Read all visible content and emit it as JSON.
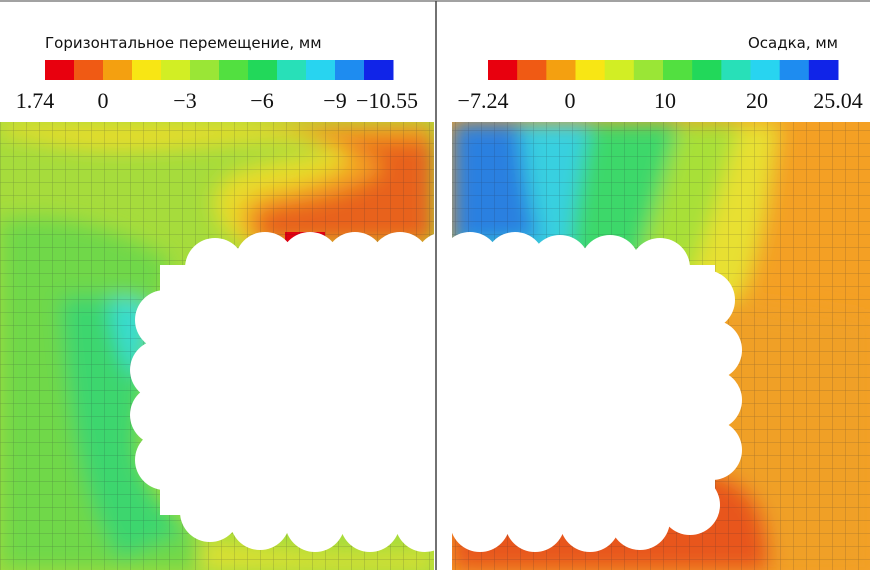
{
  "panels": [
    {
      "title": "Горизонтальное перемещение, мм",
      "colorbar": {
        "colors": [
          "#e8000e",
          "#f05a14",
          "#f4a010",
          "#f8e614",
          "#d2ee24",
          "#9ae636",
          "#52e040",
          "#22d85a",
          "#28e0b8",
          "#28d4f0",
          "#1e8cf0",
          "#1024e8"
        ],
        "labels": [
          "1.74",
          "0",
          "−3",
          "−6",
          "−9",
          "−10.55"
        ]
      }
    },
    {
      "title": "Осадка, мм",
      "colorbar": {
        "colors": [
          "#e8000e",
          "#f05a14",
          "#f4a010",
          "#f8e614",
          "#d2ee24",
          "#9ae636",
          "#52e040",
          "#22d85a",
          "#28e0b8",
          "#28d4f0",
          "#1e8cf0",
          "#1024e8"
        ],
        "labels": [
          "−7.24",
          "0",
          "10",
          "20",
          "25.04"
        ]
      }
    }
  ]
}
